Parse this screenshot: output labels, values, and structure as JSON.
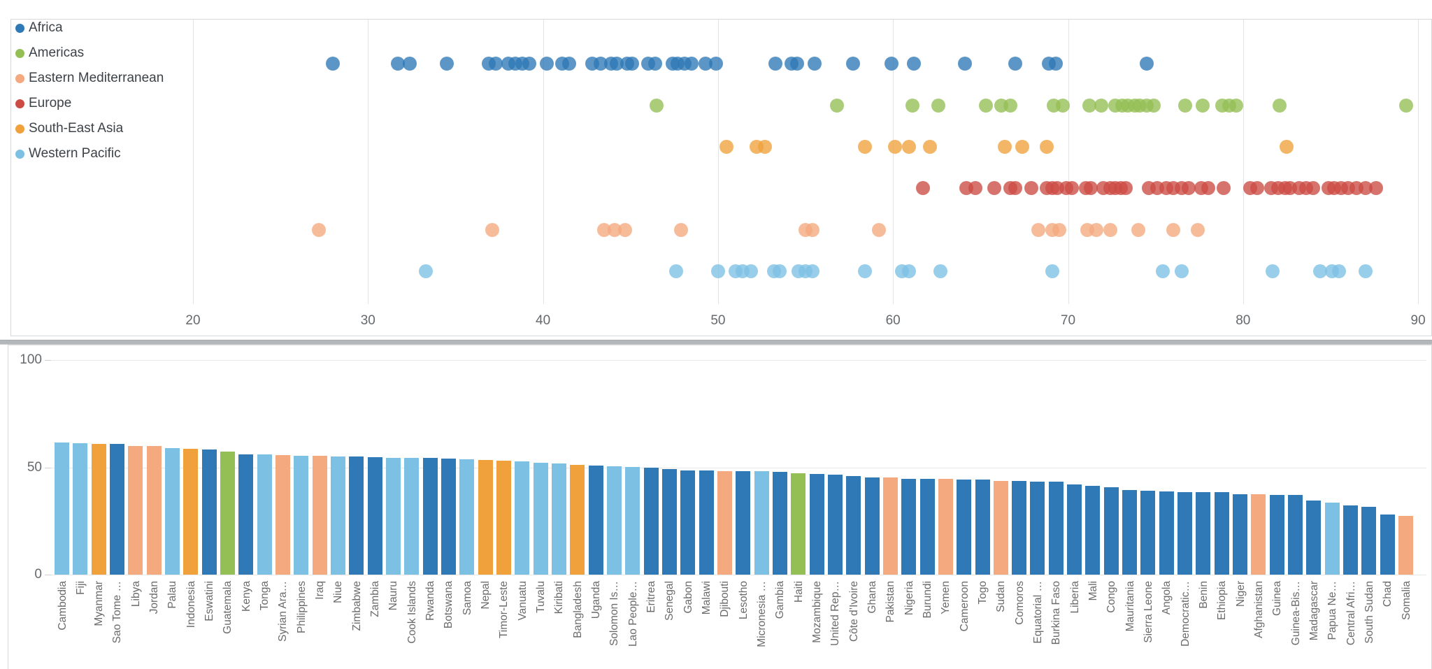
{
  "palette": {
    "Africa": "#2e79b6",
    "Americas": "#94bf55",
    "Eastern Mediterranean": "#f4a97e",
    "Europe": "#cc4c44",
    "South-East Asia": "#f0a13c",
    "Western Pacific": "#7cc0e4"
  },
  "legend": {
    "items": [
      "Africa",
      "Americas",
      "Eastern Mediterranean",
      "Europe",
      "South-East Asia",
      "Western Pacific"
    ]
  },
  "chart_data": [
    {
      "type": "scatter",
      "title": "",
      "xlabel": "",
      "xlim": [
        9.6,
        90.7
      ],
      "x_ticks": [
        "20",
        "30",
        "40",
        "50",
        "60",
        "70",
        "80",
        "90"
      ],
      "grid": "vertical",
      "legend_position": "top-left",
      "row_order_note": "rows top to bottom",
      "series": [
        {
          "name": "Africa",
          "values": [
            28.0,
            31.7,
            32.4,
            34.5,
            36.9,
            37.3,
            38.0,
            38.4,
            38.8,
            39.2,
            40.2,
            41.1,
            41.5,
            42.8,
            43.3,
            43.9,
            44.2,
            44.8,
            45.1,
            46.0,
            46.4,
            47.4,
            47.7,
            48.1,
            48.5,
            49.3,
            49.9,
            53.3,
            54.2,
            54.5,
            55.5,
            57.7,
            59.9,
            61.2,
            64.1,
            67.0,
            68.9,
            69.3,
            74.5
          ]
        },
        {
          "name": "Americas",
          "values": [
            46.5,
            56.8,
            61.1,
            62.6,
            65.3,
            66.2,
            66.7,
            69.2,
            69.7,
            71.2,
            71.9,
            72.7,
            73.1,
            73.4,
            73.8,
            74.1,
            74.5,
            74.9,
            76.7,
            77.7,
            78.8,
            79.2,
            79.6,
            82.1,
            89.3
          ]
        },
        {
          "name": "South-East Asia",
          "values": [
            50.5,
            52.2,
            52.7,
            58.4,
            60.1,
            60.9,
            62.1,
            66.4,
            67.4,
            68.8,
            82.5
          ]
        },
        {
          "name": "Europe",
          "values": [
            61.7,
            64.2,
            64.7,
            65.8,
            66.7,
            67.0,
            67.9,
            68.8,
            69.1,
            69.4,
            69.9,
            70.2,
            71.0,
            71.3,
            72.0,
            72.4,
            72.7,
            73.0,
            73.3,
            74.6,
            75.1,
            75.6,
            76.0,
            76.5,
            76.9,
            77.6,
            78.0,
            78.9,
            80.4,
            80.8,
            81.6,
            82.0,
            82.4,
            82.7,
            83.2,
            83.6,
            84.0,
            84.9,
            85.2,
            85.6,
            86.0,
            86.5,
            87.0,
            87.6
          ]
        },
        {
          "name": "Eastern Mediterranean",
          "values": [
            27.2,
            37.1,
            43.5,
            44.1,
            44.7,
            47.9,
            55.0,
            55.4,
            59.2,
            68.3,
            69.1,
            69.5,
            71.1,
            71.6,
            72.4,
            74.0,
            76.0,
            77.4
          ]
        },
        {
          "name": "Western Pacific",
          "values": [
            33.3,
            47.6,
            50.0,
            51.0,
            51.4,
            51.9,
            53.2,
            53.5,
            54.6,
            55.0,
            55.4,
            58.4,
            60.5,
            60.9,
            62.7,
            69.1,
            75.4,
            76.5,
            81.7,
            84.4,
            85.1,
            85.5,
            87.0
          ]
        }
      ]
    },
    {
      "type": "bar",
      "title": "",
      "ylim": [
        0,
        100
      ],
      "y_ticks": [
        "100",
        "50",
        "0"
      ],
      "grid": "horizontal",
      "bars": [
        {
          "label": "Cambodia",
          "value": 61.6,
          "region": "Western Pacific"
        },
        {
          "label": "Fiji",
          "value": 61.4,
          "region": "Western Pacific"
        },
        {
          "label": "Myanmar",
          "value": 61.0,
          "region": "South-East Asia"
        },
        {
          "label": "Sao Tome …",
          "value": 60.8,
          "region": "Africa"
        },
        {
          "label": "Libya",
          "value": 60.1,
          "region": "Eastern Mediterranean"
        },
        {
          "label": "Jordan",
          "value": 59.9,
          "region": "Eastern Mediterranean"
        },
        {
          "label": "Palau",
          "value": 59.0,
          "region": "Western Pacific"
        },
        {
          "label": "Indonesia",
          "value": 58.7,
          "region": "South-East Asia"
        },
        {
          "label": "Eswatini",
          "value": 58.2,
          "region": "Africa"
        },
        {
          "label": "Guatemala",
          "value": 57.5,
          "region": "Americas"
        },
        {
          "label": "Kenya",
          "value": 56.2,
          "region": "Africa"
        },
        {
          "label": "Tonga",
          "value": 56.1,
          "region": "Western Pacific"
        },
        {
          "label": "Syrian Ara…",
          "value": 55.8,
          "region": "Eastern Mediterranean"
        },
        {
          "label": "Philippines",
          "value": 55.5,
          "region": "Western Pacific"
        },
        {
          "label": "Iraq",
          "value": 55.4,
          "region": "Eastern Mediterranean"
        },
        {
          "label": "Niue",
          "value": 55.2,
          "region": "Western Pacific"
        },
        {
          "label": "Zimbabwe",
          "value": 55.0,
          "region": "Africa"
        },
        {
          "label": "Zambia",
          "value": 54.8,
          "region": "Africa"
        },
        {
          "label": "Nauru",
          "value": 54.5,
          "region": "Western Pacific"
        },
        {
          "label": "Cook Islands",
          "value": 54.4,
          "region": "Western Pacific"
        },
        {
          "label": "Rwanda",
          "value": 54.3,
          "region": "Africa"
        },
        {
          "label": "Botswana",
          "value": 54.1,
          "region": "Africa"
        },
        {
          "label": "Samoa",
          "value": 53.9,
          "region": "Western Pacific"
        },
        {
          "label": "Nepal",
          "value": 53.4,
          "region": "South-East Asia"
        },
        {
          "label": "Timor-Leste",
          "value": 53.0,
          "region": "South-East Asia"
        },
        {
          "label": "Vanuatu",
          "value": 52.9,
          "region": "Western Pacific"
        },
        {
          "label": "Tuvalu",
          "value": 52.2,
          "region": "Western Pacific"
        },
        {
          "label": "Kiribati",
          "value": 51.7,
          "region": "Western Pacific"
        },
        {
          "label": "Bangladesh",
          "value": 51.2,
          "region": "South-East Asia"
        },
        {
          "label": "Uganda",
          "value": 50.8,
          "region": "Africa"
        },
        {
          "label": "Solomon Is…",
          "value": 50.5,
          "region": "Western Pacific"
        },
        {
          "label": "Lao People…",
          "value": 50.3,
          "region": "Western Pacific"
        },
        {
          "label": "Eritrea",
          "value": 50.0,
          "region": "Africa"
        },
        {
          "label": "Senegal",
          "value": 49.2,
          "region": "Africa"
        },
        {
          "label": "Gabon",
          "value": 48.7,
          "region": "Africa"
        },
        {
          "label": "Malawi",
          "value": 48.5,
          "region": "Africa"
        },
        {
          "label": "Djibouti",
          "value": 48.4,
          "region": "Eastern Mediterranean"
        },
        {
          "label": "Lesotho",
          "value": 48.2,
          "region": "Africa"
        },
        {
          "label": "Micronesia …",
          "value": 48.1,
          "region": "Western Pacific"
        },
        {
          "label": "Gambia",
          "value": 48.0,
          "region": "Africa"
        },
        {
          "label": "Haiti",
          "value": 47.1,
          "region": "Americas"
        },
        {
          "label": "Mozambique",
          "value": 47.0,
          "region": "Africa"
        },
        {
          "label": "United Rep…",
          "value": 46.7,
          "region": "Africa"
        },
        {
          "label": "Côte d’Ivoire",
          "value": 45.9,
          "region": "Africa"
        },
        {
          "label": "Ghana",
          "value": 45.4,
          "region": "Africa"
        },
        {
          "label": "Pakistan",
          "value": 45.2,
          "region": "Eastern Mediterranean"
        },
        {
          "label": "Nigeria",
          "value": 44.7,
          "region": "Africa"
        },
        {
          "label": "Burundi",
          "value": 44.6,
          "region": "Africa"
        },
        {
          "label": "Yemen",
          "value": 44.5,
          "region": "Eastern Mediterranean"
        },
        {
          "label": "Cameroon",
          "value": 44.4,
          "region": "Africa"
        },
        {
          "label": "Togo",
          "value": 44.3,
          "region": "Africa"
        },
        {
          "label": "Sudan",
          "value": 43.8,
          "region": "Eastern Mediterranean"
        },
        {
          "label": "Comoros",
          "value": 43.7,
          "region": "Africa"
        },
        {
          "label": "Equatorial …",
          "value": 43.3,
          "region": "Africa"
        },
        {
          "label": "Burkina Faso",
          "value": 43.2,
          "region": "Africa"
        },
        {
          "label": "Liberia",
          "value": 42.0,
          "region": "Africa"
        },
        {
          "label": "Mali",
          "value": 41.5,
          "region": "Africa"
        },
        {
          "label": "Congo",
          "value": 40.7,
          "region": "Africa"
        },
        {
          "label": "Mauritania",
          "value": 39.6,
          "region": "Africa"
        },
        {
          "label": "Sierra Leone",
          "value": 39.2,
          "region": "Africa"
        },
        {
          "label": "Angola",
          "value": 38.8,
          "region": "Africa"
        },
        {
          "label": "Democratic…",
          "value": 38.6,
          "region": "Africa"
        },
        {
          "label": "Benin",
          "value": 38.4,
          "region": "Africa"
        },
        {
          "label": "Ethiopia",
          "value": 38.3,
          "region": "Africa"
        },
        {
          "label": "Niger",
          "value": 37.5,
          "region": "Africa"
        },
        {
          "label": "Afghanistan",
          "value": 37.4,
          "region": "Eastern Mediterranean"
        },
        {
          "label": "Guinea",
          "value": 37.2,
          "region": "Africa"
        },
        {
          "label": "Guinea-Bis…",
          "value": 37.1,
          "region": "Africa"
        },
        {
          "label": "Madagascar",
          "value": 34.7,
          "region": "Africa"
        },
        {
          "label": "Papua Ne…",
          "value": 33.5,
          "region": "Western Pacific"
        },
        {
          "label": "Central Afri…",
          "value": 32.4,
          "region": "Africa"
        },
        {
          "label": "South Sudan",
          "value": 31.7,
          "region": "Africa"
        },
        {
          "label": "Chad",
          "value": 28.0,
          "region": "Africa"
        },
        {
          "label": "Somalia",
          "value": 27.3,
          "region": "Eastern Mediterranean"
        }
      ]
    }
  ]
}
